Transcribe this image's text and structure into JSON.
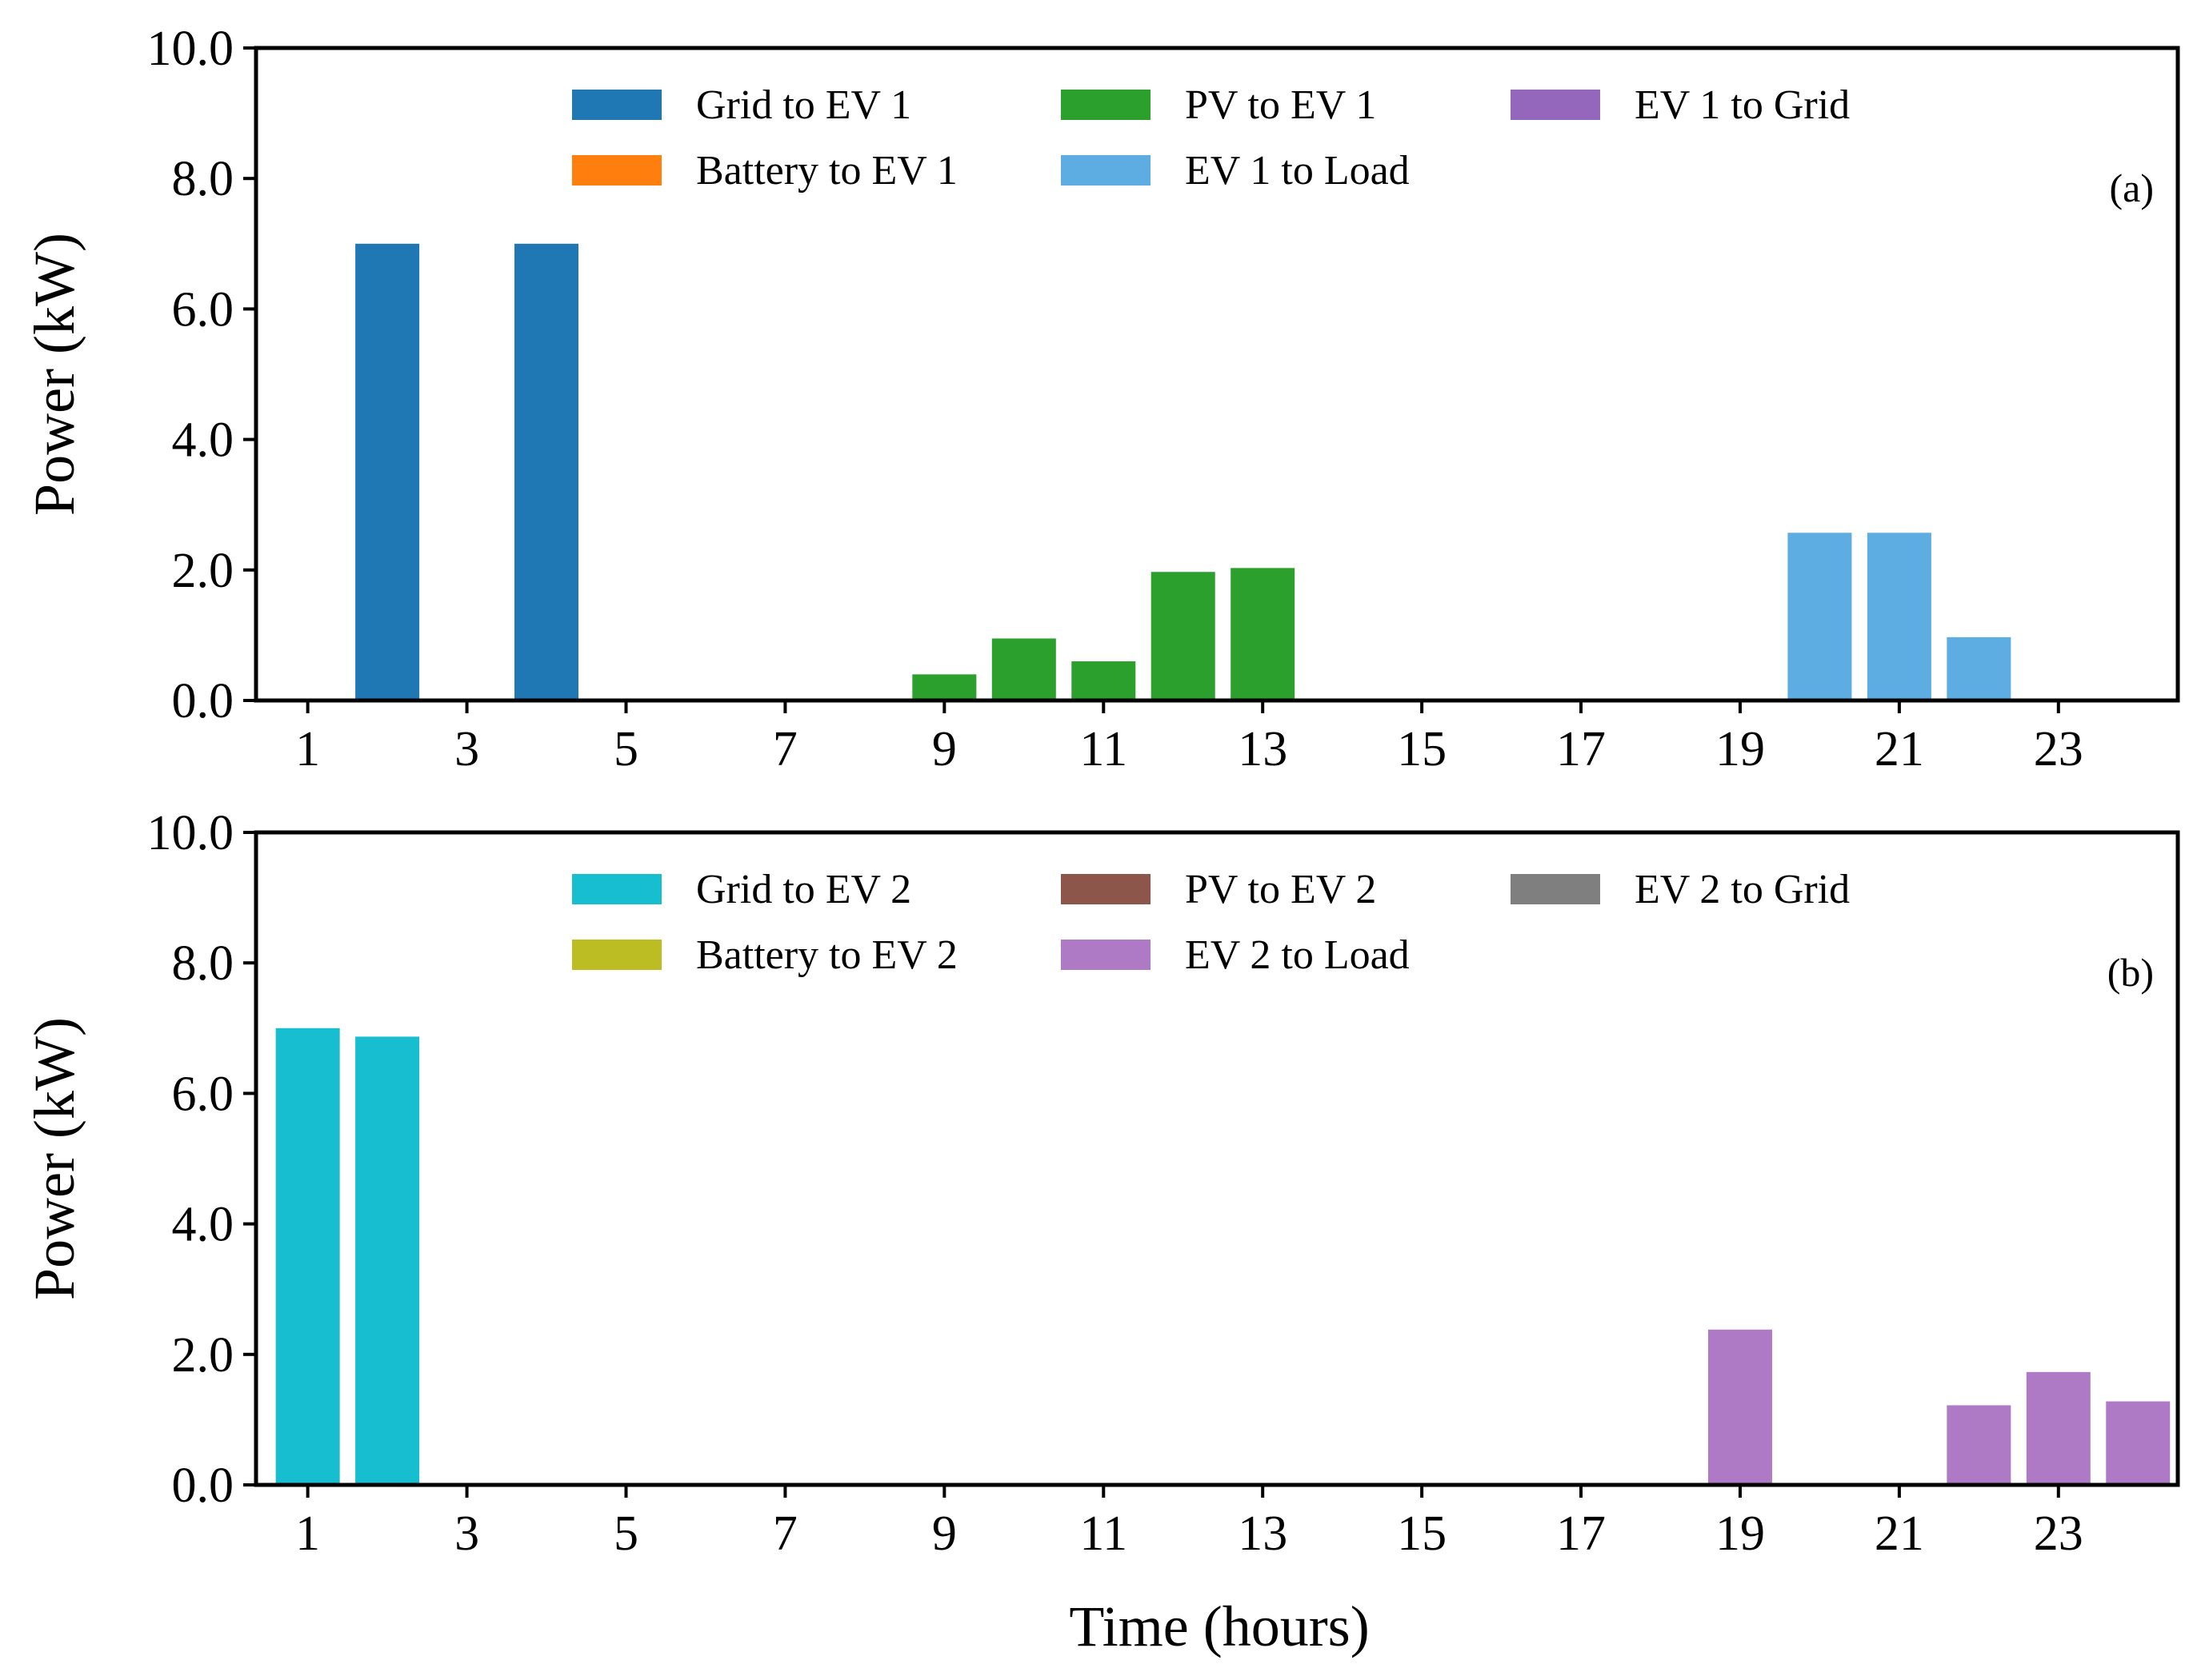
{
  "chart_data": [
    {
      "type": "bar",
      "panel_label": "(a)",
      "ylabel": "Power (kW)",
      "xlabel": "",
      "xlim": [
        0.35,
        24.5
      ],
      "ylim": [
        0,
        10
      ],
      "x_ticks": [
        1,
        3,
        5,
        7,
        9,
        11,
        13,
        15,
        17,
        19,
        21,
        23
      ],
      "x_tick_labels": [
        "1",
        "3",
        "5",
        "7",
        "9",
        "11",
        "13",
        "15",
        "17",
        "19",
        "21",
        "23"
      ],
      "y_ticks": [
        0,
        2,
        4,
        6,
        8,
        10
      ],
      "y_tick_labels": [
        "0.0",
        "2.0",
        "4.0",
        "6.0",
        "8.0",
        "10.0"
      ],
      "grid": false,
      "legend_position": "top-center",
      "series": [
        {
          "name": "Grid to EV 1",
          "color": "#1f77b4",
          "points": [
            {
              "x": 2,
              "y": 7.0
            },
            {
              "x": 4,
              "y": 7.0
            }
          ]
        },
        {
          "name": "Battery to EV 1",
          "color": "#ff7f0e",
          "points": []
        },
        {
          "name": "PV to EV 1",
          "color": "#2ca02c",
          "points": [
            {
              "x": 9,
              "y": 0.4
            },
            {
              "x": 10,
              "y": 0.95
            },
            {
              "x": 11,
              "y": 0.6
            },
            {
              "x": 12,
              "y": 1.97
            },
            {
              "x": 13,
              "y": 2.03
            }
          ]
        },
        {
          "name": "EV 1 to Load",
          "color": "#5dade2",
          "points": [
            {
              "x": 20,
              "y": 2.57
            },
            {
              "x": 21,
              "y": 2.57
            },
            {
              "x": 22,
              "y": 0.97
            }
          ]
        },
        {
          "name": "EV 1 to Grid",
          "color": "#9467bd",
          "points": []
        }
      ]
    },
    {
      "type": "bar",
      "panel_label": "(b)",
      "ylabel": "Power (kW)",
      "xlabel": "Time (hours)",
      "xlim": [
        0.35,
        24.5
      ],
      "ylim": [
        0,
        10
      ],
      "x_ticks": [
        1,
        3,
        5,
        7,
        9,
        11,
        13,
        15,
        17,
        19,
        21,
        23
      ],
      "x_tick_labels": [
        "1",
        "3",
        "5",
        "7",
        "9",
        "11",
        "13",
        "15",
        "17",
        "19",
        "21",
        "23"
      ],
      "y_ticks": [
        0,
        2,
        4,
        6,
        8,
        10
      ],
      "y_tick_labels": [
        "0.0",
        "2.0",
        "4.0",
        "6.0",
        "8.0",
        "10.0"
      ],
      "grid": false,
      "legend_position": "top-center",
      "series": [
        {
          "name": "Grid to EV 2",
          "color": "#17becf",
          "points": [
            {
              "x": 1,
              "y": 7.0
            },
            {
              "x": 2,
              "y": 6.87
            }
          ]
        },
        {
          "name": "Battery to EV 2",
          "color": "#bcbd22",
          "points": []
        },
        {
          "name": "PV to EV 2",
          "color": "#8c564b",
          "points": []
        },
        {
          "name": "EV 2 to Load",
          "color": "#af7ac5",
          "points": [
            {
              "x": 19,
              "y": 2.38
            },
            {
              "x": 22,
              "y": 1.22
            },
            {
              "x": 23,
              "y": 1.73
            },
            {
              "x": 24,
              "y": 1.28
            }
          ]
        },
        {
          "name": "EV 2 to Grid",
          "color": "#7f7f7f",
          "points": []
        }
      ]
    }
  ]
}
